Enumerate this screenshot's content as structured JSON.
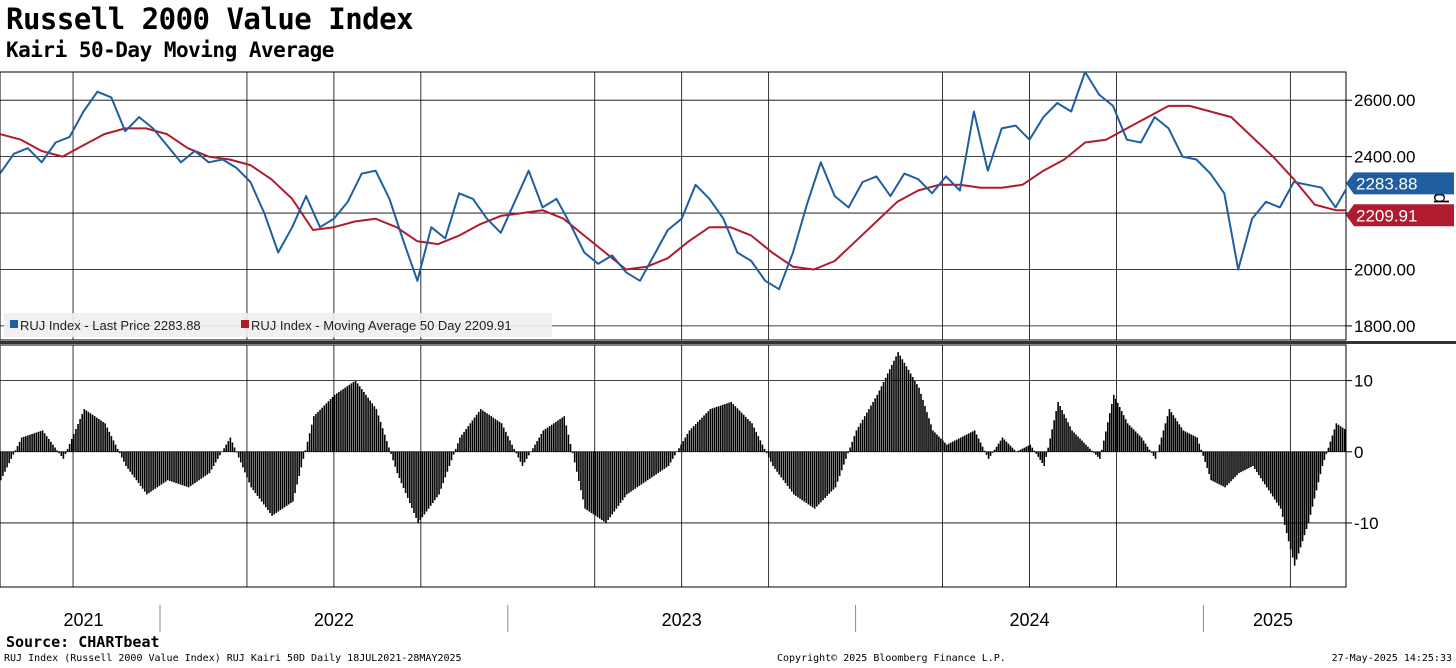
{
  "title": "Russell 2000 Value Index",
  "subtitle": "Kairi 50-Day Moving Average",
  "source": "Source: CHARTbeat",
  "footer": {
    "left": "RUJ Index (Russell 2000 Value Index) RUJ Kairi 50D  Daily 18JUL2021-28MAY2025",
    "middle": "Copyright© 2025 Bloomberg Finance L.P.",
    "right": "27-May-2025 14:25:33"
  },
  "colors": {
    "price": "#1f5fa0",
    "ma": "#b01c2e",
    "bars": "#000000",
    "grid": "#000000"
  },
  "chart_data": [
    {
      "type": "line",
      "title": "Russell 2000 Value Index",
      "ylabel": "Index",
      "ylim": [
        1750,
        2700
      ],
      "yticks": [
        "1800.00",
        "2000.00",
        "2200.00",
        "2400.00",
        "2600.00"
      ],
      "xlim": [
        2021.54,
        2025.41
      ],
      "xticks": [
        "2021",
        "2022",
        "2023",
        "2024",
        "2025"
      ],
      "grid": true,
      "legend_position": "bottom-left",
      "series": [
        {
          "name": "RUJ Index - Last Price 2283.88",
          "label_value": "2283.88",
          "x": [
            2021.54,
            2021.58,
            2021.62,
            2021.66,
            2021.7,
            2021.74,
            2021.78,
            2021.82,
            2021.86,
            2021.9,
            2021.94,
            2021.98,
            2022.02,
            2022.06,
            2022.1,
            2022.14,
            2022.18,
            2022.22,
            2022.26,
            2022.3,
            2022.34,
            2022.38,
            2022.42,
            2022.46,
            2022.5,
            2022.54,
            2022.58,
            2022.62,
            2022.66,
            2022.7,
            2022.74,
            2022.78,
            2022.82,
            2022.86,
            2022.9,
            2022.94,
            2022.98,
            2023.02,
            2023.06,
            2023.1,
            2023.14,
            2023.18,
            2023.22,
            2023.26,
            2023.3,
            2023.34,
            2023.38,
            2023.42,
            2023.46,
            2023.5,
            2023.54,
            2023.58,
            2023.62,
            2023.66,
            2023.7,
            2023.74,
            2023.78,
            2023.82,
            2023.86,
            2023.9,
            2023.94,
            2023.98,
            2024.02,
            2024.06,
            2024.1,
            2024.14,
            2024.18,
            2024.22,
            2024.26,
            2024.3,
            2024.34,
            2024.38,
            2024.42,
            2024.46,
            2024.5,
            2024.54,
            2024.58,
            2024.62,
            2024.66,
            2024.7,
            2024.74,
            2024.78,
            2024.82,
            2024.86,
            2024.9,
            2024.94,
            2024.98,
            2025.02,
            2025.06,
            2025.1,
            2025.14,
            2025.18,
            2025.22,
            2025.26,
            2025.3,
            2025.34,
            2025.38,
            2025.41
          ],
          "values": [
            2340,
            2410,
            2430,
            2380,
            2450,
            2470,
            2560,
            2630,
            2610,
            2490,
            2540,
            2500,
            2440,
            2380,
            2420,
            2380,
            2390,
            2360,
            2310,
            2200,
            2060,
            2150,
            2260,
            2150,
            2180,
            2240,
            2340,
            2350,
            2250,
            2100,
            1960,
            2150,
            2110,
            2270,
            2250,
            2180,
            2130,
            2240,
            2350,
            2220,
            2250,
            2160,
            2060,
            2020,
            2050,
            1990,
            1960,
            2050,
            2140,
            2180,
            2300,
            2250,
            2180,
            2060,
            2030,
            1960,
            1930,
            2060,
            2230,
            2380,
            2260,
            2220,
            2310,
            2330,
            2260,
            2340,
            2320,
            2270,
            2330,
            2280,
            2560,
            2350,
            2500,
            2510,
            2460,
            2540,
            2590,
            2560,
            2700,
            2620,
            2580,
            2460,
            2450,
            2540,
            2500,
            2400,
            2390,
            2340,
            2270,
            2000,
            2180,
            2240,
            2220,
            2310,
            2300,
            2290,
            2220,
            2283.88
          ]
        },
        {
          "name": "RUJ Index - Moving Average 50 Day 2209.91",
          "label_value": "2209.91",
          "x": [
            2021.54,
            2021.6,
            2021.66,
            2021.72,
            2021.78,
            2021.84,
            2021.9,
            2021.96,
            2022.02,
            2022.08,
            2022.14,
            2022.2,
            2022.26,
            2022.32,
            2022.38,
            2022.44,
            2022.5,
            2022.56,
            2022.62,
            2022.68,
            2022.74,
            2022.8,
            2022.86,
            2022.92,
            2022.98,
            2023.04,
            2023.1,
            2023.16,
            2023.22,
            2023.28,
            2023.34,
            2023.4,
            2023.46,
            2023.52,
            2023.58,
            2023.64,
            2023.7,
            2023.76,
            2023.82,
            2023.88,
            2023.94,
            2024.0,
            2024.06,
            2024.12,
            2024.18,
            2024.24,
            2024.3,
            2024.36,
            2024.42,
            2024.48,
            2024.54,
            2024.6,
            2024.66,
            2024.72,
            2024.78,
            2024.84,
            2024.9,
            2024.96,
            2025.02,
            2025.08,
            2025.14,
            2025.2,
            2025.26,
            2025.32,
            2025.38,
            2025.41
          ],
          "values": [
            2480,
            2460,
            2420,
            2400,
            2440,
            2480,
            2500,
            2500,
            2480,
            2430,
            2400,
            2390,
            2370,
            2320,
            2250,
            2140,
            2150,
            2170,
            2180,
            2150,
            2100,
            2090,
            2120,
            2160,
            2190,
            2200,
            2210,
            2180,
            2120,
            2060,
            2000,
            2010,
            2040,
            2100,
            2150,
            2150,
            2120,
            2060,
            2010,
            2000,
            2030,
            2100,
            2170,
            2240,
            2280,
            2300,
            2300,
            2290,
            2290,
            2300,
            2350,
            2390,
            2450,
            2460,
            2500,
            2540,
            2580,
            2580,
            2560,
            2540,
            2470,
            2400,
            2320,
            2230,
            2210,
            2209.91
          ]
        }
      ]
    },
    {
      "type": "bar",
      "title": "RUJ Kairi 50D",
      "ylim": [
        -19,
        15
      ],
      "yticks": [
        "-10",
        "0",
        "10"
      ],
      "xlim": [
        2021.54,
        2025.41
      ],
      "x": [
        2021.54,
        2021.6,
        2021.66,
        2021.72,
        2021.78,
        2021.84,
        2021.9,
        2021.96,
        2022.02,
        2022.08,
        2022.14,
        2022.2,
        2022.26,
        2022.32,
        2022.38,
        2022.44,
        2022.5,
        2022.56,
        2022.62,
        2022.68,
        2022.74,
        2022.8,
        2022.86,
        2022.92,
        2022.98,
        2023.04,
        2023.1,
        2023.16,
        2023.22,
        2023.28,
        2023.34,
        2023.4,
        2023.46,
        2023.52,
        2023.58,
        2023.64,
        2023.7,
        2023.76,
        2023.82,
        2023.88,
        2023.94,
        2024.0,
        2024.06,
        2024.12,
        2024.18,
        2024.22,
        2024.26,
        2024.3,
        2024.34,
        2024.38,
        2024.42,
        2024.46,
        2024.5,
        2024.54,
        2024.58,
        2024.62,
        2024.66,
        2024.7,
        2024.74,
        2024.78,
        2024.82,
        2024.86,
        2024.9,
        2024.94,
        2024.98,
        2025.02,
        2025.06,
        2025.1,
        2025.14,
        2025.18,
        2025.22,
        2025.26,
        2025.3,
        2025.34,
        2025.38,
        2025.41
      ],
      "values": [
        -4,
        2,
        3,
        -1,
        6,
        4,
        -2,
        -6,
        -4,
        -5,
        -3,
        2,
        -5,
        -9,
        -7,
        5,
        8,
        10,
        6,
        -3,
        -10,
        -6,
        2,
        6,
        4,
        -2,
        3,
        5,
        -8,
        -10,
        -6,
        -4,
        -2,
        3,
        6,
        7,
        4,
        -2,
        -6,
        -8,
        -5,
        3,
        8,
        14,
        9,
        3,
        1,
        2,
        3,
        -1,
        2,
        0,
        1,
        -2,
        7,
        3,
        1,
        -1,
        8,
        4,
        2,
        -1,
        6,
        3,
        2,
        -4,
        -5,
        -3,
        -2,
        -5,
        -8,
        -16,
        -10,
        -2,
        4,
        3
      ]
    }
  ]
}
